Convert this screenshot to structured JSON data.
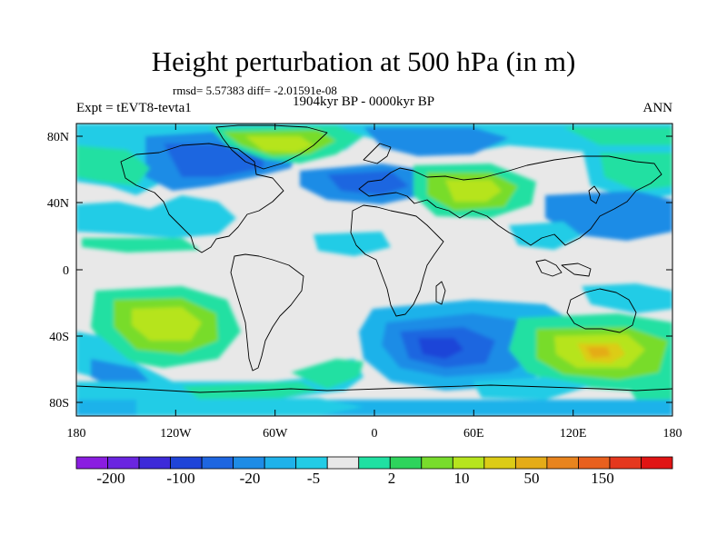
{
  "plot": {
    "title": "Height perturbation at 500 hPa (in m)",
    "left_label": "Expt = tEVT8-tevta1",
    "right_label": "ANN",
    "stats": "rmsd= 5.57383 diff= -2.01591e-08",
    "period": "1904kyr BP - 0000kyr BP"
  },
  "axes": {
    "lon_ticks": [
      "180",
      "120W",
      "60W",
      "0",
      "60E",
      "120E",
      "180"
    ],
    "lat_ticks": [
      "80N",
      "40N",
      "0",
      "40S",
      "80S"
    ]
  },
  "colorbar": {
    "colors": [
      "#8a1de0",
      "#6a25e0",
      "#3d2ad8",
      "#1f44d8",
      "#1e66e0",
      "#1e8ce6",
      "#1fb2ea",
      "#22cce6",
      "#e8e8e8",
      "#20e0a2",
      "#2ed45c",
      "#78dc2c",
      "#b6e41e",
      "#dccc16",
      "#e4ac18",
      "#e8841e",
      "#e8601e",
      "#e4381e",
      "#e01414"
    ],
    "labels": [
      "-200",
      "-100",
      "-20",
      "-5",
      "2",
      "10",
      "50",
      "150"
    ]
  }
}
